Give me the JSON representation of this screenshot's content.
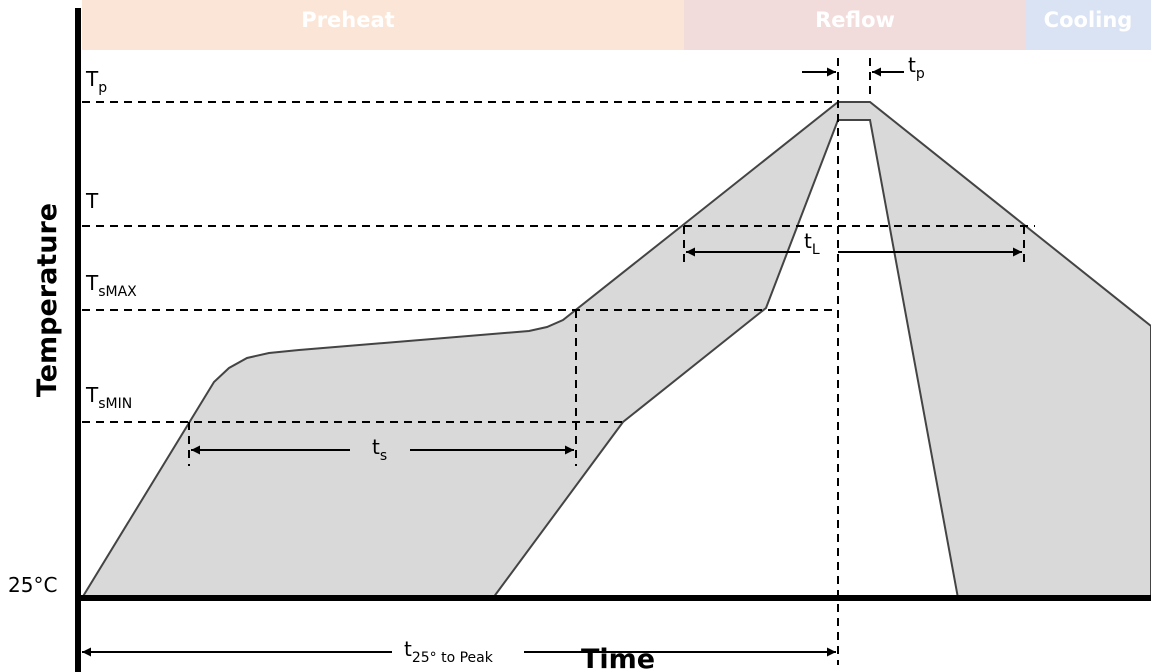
{
  "phases": {
    "preheat": {
      "label": "Preheat",
      "color": "#fbe5d6"
    },
    "reflow": {
      "label": "Reflow",
      "color": "#f2dcdb"
    },
    "cooling": {
      "label": "Cooling",
      "color": "#dae3f3"
    }
  },
  "axes": {
    "y_title": "Temperature",
    "x_title": "Time",
    "origin_label": "25°C"
  },
  "levels": {
    "tp": {
      "main": "T",
      "sub": "p"
    },
    "tl": {
      "main": "T",
      "sub": ""
    },
    "tsmax": {
      "main": "T",
      "sub": "sMAX"
    },
    "tsmin": {
      "main": "T",
      "sub": "sMIN"
    }
  },
  "durations": {
    "tp": {
      "main": "t",
      "sub": "p"
    },
    "tl": {
      "main": "t",
      "sub": "L"
    },
    "ts": {
      "main": "t",
      "sub": "s"
    },
    "t25": {
      "main": "t",
      "sub": "25° to Peak"
    }
  },
  "colors": {
    "band_fill": "#d9d9d9",
    "line": "#000000"
  }
}
